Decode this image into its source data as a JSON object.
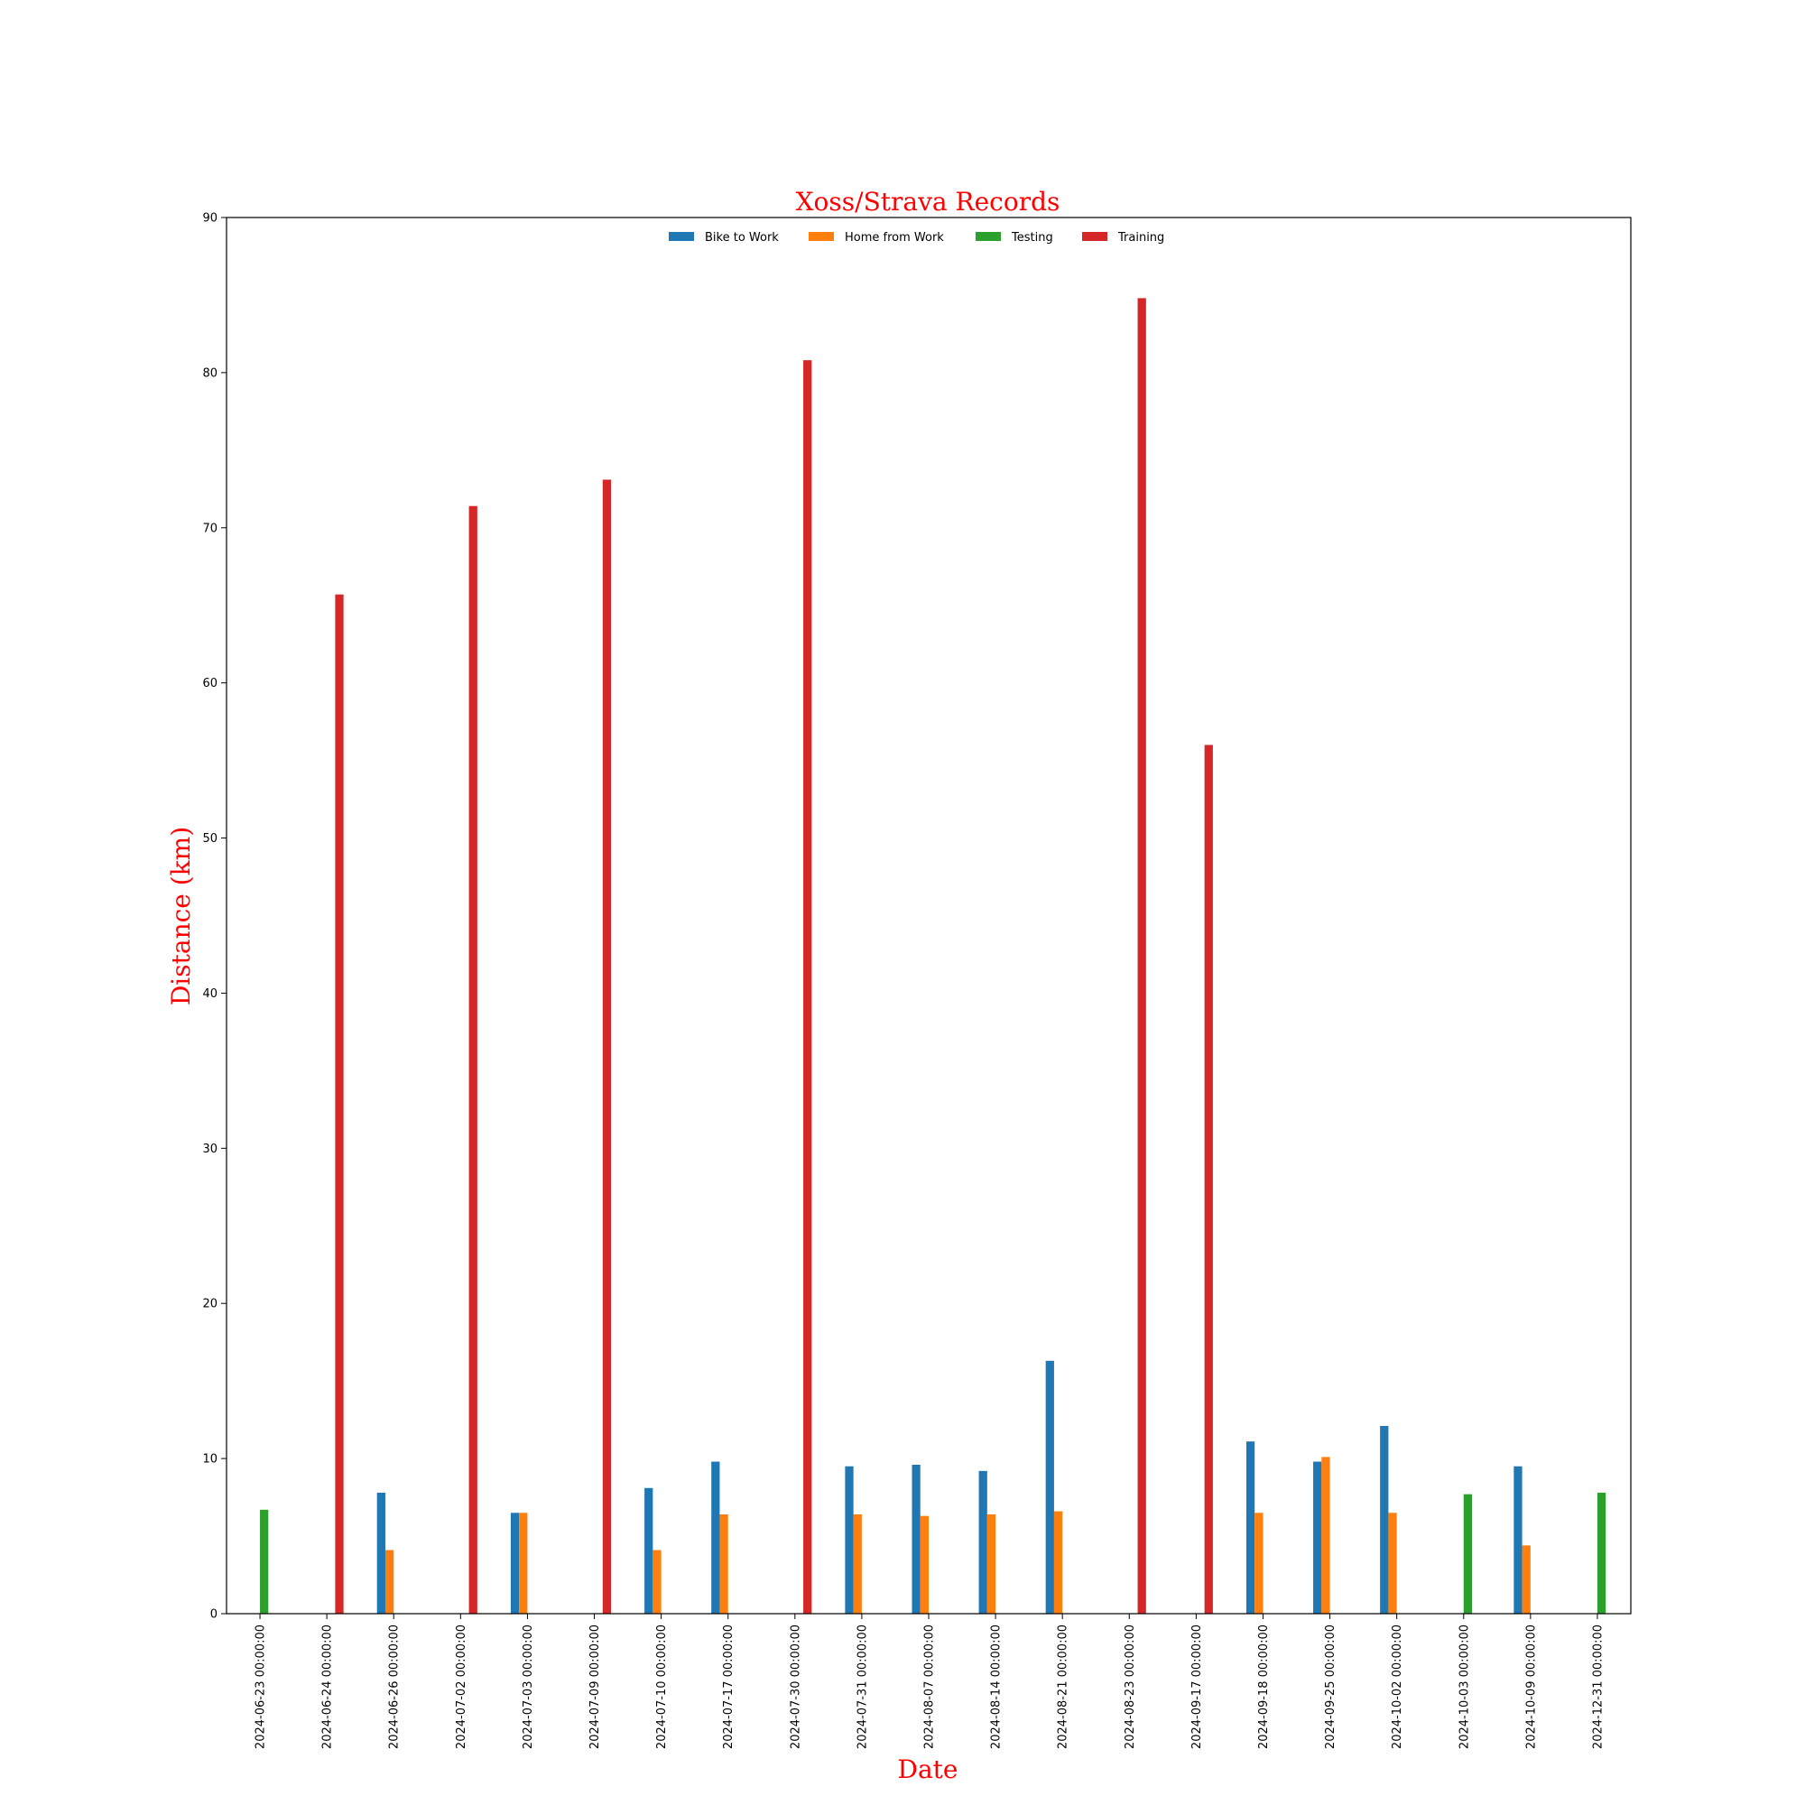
{
  "chart_data": {
    "type": "bar",
    "title": "Xoss/Strava Records",
    "xlabel": "Date",
    "ylabel": "Distance (km)",
    "ylim": [
      0,
      90
    ],
    "yticks": [
      0,
      10,
      20,
      30,
      40,
      50,
      60,
      70,
      80,
      90
    ],
    "grid": false,
    "legend_position": "top-center",
    "categories": [
      "2024-06-23 00:00:00",
      "2024-06-24 00:00:00",
      "2024-06-26 00:00:00",
      "2024-07-02 00:00:00",
      "2024-07-03 00:00:00",
      "2024-07-09 00:00:00",
      "2024-07-10 00:00:00",
      "2024-07-17 00:00:00",
      "2024-07-30 00:00:00",
      "2024-07-31 00:00:00",
      "2024-08-07 00:00:00",
      "2024-08-14 00:00:00",
      "2024-08-21 00:00:00",
      "2024-08-23 00:00:00",
      "2024-09-17 00:00:00",
      "2024-09-18 00:00:00",
      "2024-09-25 00:00:00",
      "2024-10-02 00:00:00",
      "2024-10-03 00:00:00",
      "2024-10-09 00:00:00",
      "2024-12-31 00:00:00"
    ],
    "series": [
      {
        "name": "Bike to Work",
        "color": "#1f77b4",
        "values": [
          null,
          null,
          7.8,
          null,
          6.5,
          null,
          8.1,
          9.8,
          null,
          9.5,
          9.6,
          9.2,
          16.3,
          null,
          null,
          11.1,
          9.8,
          12.1,
          null,
          9.5,
          null
        ]
      },
      {
        "name": "Home from Work",
        "color": "#ff7f0e",
        "values": [
          null,
          null,
          4.1,
          null,
          6.5,
          null,
          4.1,
          6.4,
          null,
          6.4,
          6.3,
          6.4,
          6.6,
          null,
          null,
          6.5,
          10.1,
          6.5,
          null,
          4.4,
          null
        ]
      },
      {
        "name": "Testing",
        "color": "#2ca02c",
        "values": [
          6.7,
          null,
          null,
          null,
          null,
          null,
          null,
          null,
          null,
          null,
          null,
          null,
          null,
          null,
          null,
          null,
          null,
          null,
          7.7,
          null,
          7.8
        ]
      },
      {
        "name": "Training",
        "color": "#d62728",
        "values": [
          null,
          65.7,
          null,
          71.4,
          null,
          73.1,
          null,
          null,
          80.8,
          null,
          null,
          null,
          null,
          84.8,
          56.0,
          null,
          null,
          null,
          null,
          null,
          null
        ]
      }
    ]
  }
}
